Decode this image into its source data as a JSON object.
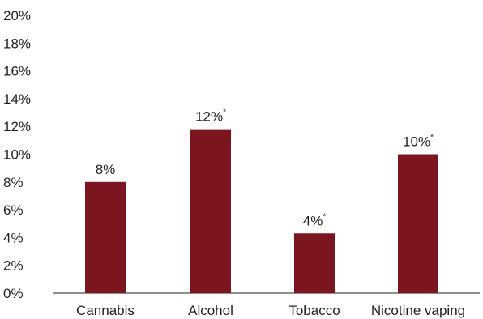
{
  "chart_data": {
    "type": "bar",
    "categories": [
      "Cannabis",
      "Alcohol",
      "Tobacco",
      "Nicotine vaping"
    ],
    "values": [
      8,
      11.8,
      4.3,
      10
    ],
    "data_labels": [
      "8%",
      "12%",
      "4%",
      "10%"
    ],
    "significance_marks": [
      "",
      "*",
      "*",
      "*"
    ],
    "ylim": [
      0,
      20
    ],
    "yticks": [
      0,
      2,
      4,
      6,
      8,
      10,
      12,
      14,
      16,
      18,
      20
    ],
    "ytick_labels": [
      "0%",
      "2%",
      "4%",
      "6%",
      "8%",
      "10%",
      "12%",
      "14%",
      "16%",
      "18%",
      "20%"
    ],
    "grid": false,
    "bar_color": "#7b1520",
    "title": "",
    "xlabel": "",
    "ylabel": ""
  }
}
